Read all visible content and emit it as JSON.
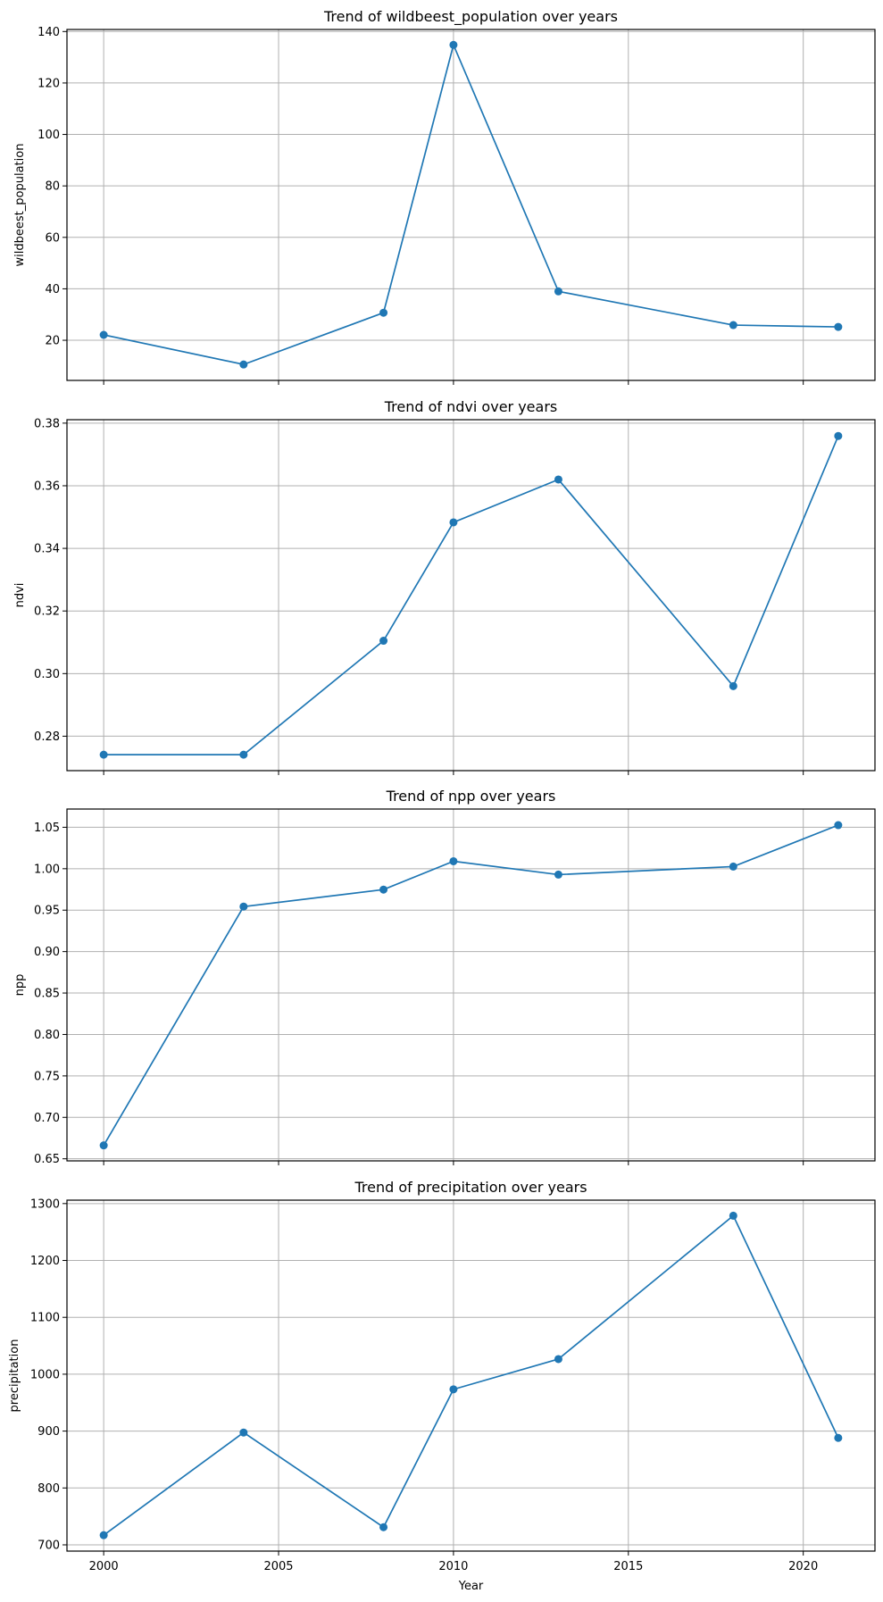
{
  "figure": {
    "xlabel": "Year",
    "line_color": "#1f77b4",
    "grid_color": "#b0b0b0"
  },
  "chart_data": [
    {
      "type": "line",
      "title": "Trend of wildbeest_population over years",
      "xlabel": "",
      "ylabel": "wildbeest_population",
      "x": [
        2000,
        2004,
        2008,
        2010,
        2013,
        2018,
        2021
      ],
      "series": [
        {
          "name": "wildbeest_population",
          "values": [
            22.1,
            10.6,
            30.7,
            134.8,
            39.0,
            25.9,
            25.2
          ]
        }
      ],
      "xlim": [
        1998.95,
        2022.05
      ],
      "ylim": [
        4.4,
        140.8
      ],
      "yticks": [
        20,
        40,
        60,
        80,
        100,
        120,
        140
      ],
      "ytick_labels": [
        "20",
        "40",
        "60",
        "80",
        "100",
        "120",
        "140"
      ],
      "xticks": [
        2000,
        2005,
        2010,
        2015,
        2020
      ],
      "xtick_labels": [],
      "grid": true,
      "legend": null
    },
    {
      "type": "line",
      "title": "Trend of ndvi over years",
      "xlabel": "",
      "ylabel": "ndvi",
      "x": [
        2000,
        2004,
        2008,
        2010,
        2013,
        2018,
        2021
      ],
      "series": [
        {
          "name": "ndvi",
          "values": [
            0.2741,
            0.2741,
            0.3105,
            0.3483,
            0.362,
            0.296,
            0.3759
          ]
        }
      ],
      "xlim": [
        1998.95,
        2022.05
      ],
      "ylim": [
        0.269,
        0.3811
      ],
      "yticks": [
        0.28,
        0.3,
        0.32,
        0.34,
        0.36,
        0.38
      ],
      "ytick_labels": [
        "0.28",
        "0.30",
        "0.32",
        "0.34",
        "0.36",
        "0.38"
      ],
      "xticks": [
        2000,
        2005,
        2010,
        2015,
        2020
      ],
      "xtick_labels": [],
      "grid": true,
      "legend": null
    },
    {
      "type": "line",
      "title": "Trend of npp over years",
      "xlabel": "",
      "ylabel": "npp",
      "x": [
        2000,
        2004,
        2008,
        2010,
        2013,
        2018,
        2021
      ],
      "series": [
        {
          "name": "npp",
          "values": [
            0.6662,
            0.9543,
            0.9748,
            1.009,
            0.9929,
            1.0026,
            1.0526
          ]
        }
      ],
      "xlim": [
        1998.95,
        2022.05
      ],
      "ylim": [
        0.6475,
        1.072
      ],
      "yticks": [
        0.65,
        0.7,
        0.75,
        0.8,
        0.85,
        0.9,
        0.95,
        1.0,
        1.05
      ],
      "ytick_labels": [
        "0.65",
        "0.70",
        "0.75",
        "0.80",
        "0.85",
        "0.90",
        "0.95",
        "1.00",
        "1.05"
      ],
      "xticks": [
        2000,
        2005,
        2010,
        2015,
        2020
      ],
      "xtick_labels": [],
      "grid": true,
      "legend": null
    },
    {
      "type": "line",
      "title": "Trend of precipitation over years",
      "xlabel": "Year",
      "ylabel": "precipitation",
      "x": [
        2000,
        2004,
        2008,
        2010,
        2013,
        2018,
        2021
      ],
      "series": [
        {
          "name": "precipitation",
          "values": [
            717,
            897.5,
            731,
            973.4,
            1026.6,
            1278.7,
            888
          ]
        }
      ],
      "xlim": [
        1998.95,
        2022.05
      ],
      "ylim": [
        689,
        1306
      ],
      "yticks": [
        700,
        800,
        900,
        1000,
        1100,
        1200,
        1300
      ],
      "ytick_labels": [
        "700",
        "800",
        "900",
        "1000",
        "1100",
        "1200",
        "1300"
      ],
      "xticks": [
        2000,
        2005,
        2010,
        2015,
        2020
      ],
      "xtick_labels": [
        "2000",
        "2005",
        "2010",
        "2015",
        "2020"
      ],
      "grid": true,
      "legend": null
    }
  ]
}
